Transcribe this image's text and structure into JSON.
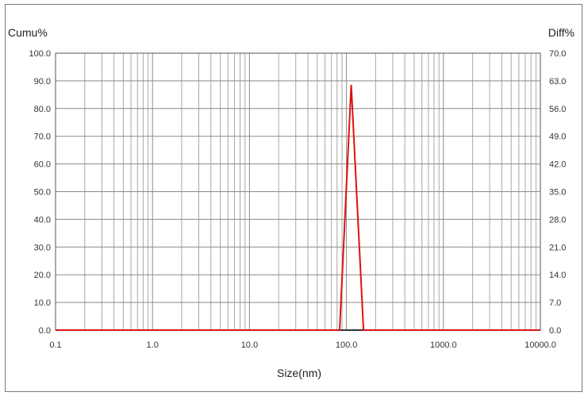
{
  "chart_data": {
    "type": "line",
    "title": "",
    "xlabel": "Size(nm)",
    "ylabel_left": "Cumu%",
    "ylabel_right": "Diff%",
    "x_scale": "log",
    "xlim": [
      0.1,
      10000.0
    ],
    "ylim_left": [
      0,
      100
    ],
    "ylim_right": [
      0,
      70
    ],
    "grid": true,
    "x_tick_labels": [
      "0.1",
      "1.0",
      "10.0",
      "100.0",
      "1000.0",
      "10000.0"
    ],
    "y_left_tick_labels": [
      "0.0",
      "10.0",
      "20.0",
      "30.0",
      "40.0",
      "50.0",
      "60.0",
      "70.0",
      "80.0",
      "90.0",
      "100.0"
    ],
    "y_right_tick_labels": [
      "0.0",
      "7.0",
      "14.0",
      "21.0",
      "28.0",
      "35.0",
      "42.0",
      "49.0",
      "56.0",
      "63.0",
      "70.0"
    ],
    "series": [
      {
        "color": "#dd1111",
        "axis": "right",
        "x": [
          0.1,
          4.7,
          85.0,
          112.0,
          150.0,
          10000.0
        ],
        "y": [
          0.0,
          0.0,
          0.0,
          62.0,
          0.0,
          0.0
        ]
      }
    ],
    "baseline_color": "#333333"
  }
}
